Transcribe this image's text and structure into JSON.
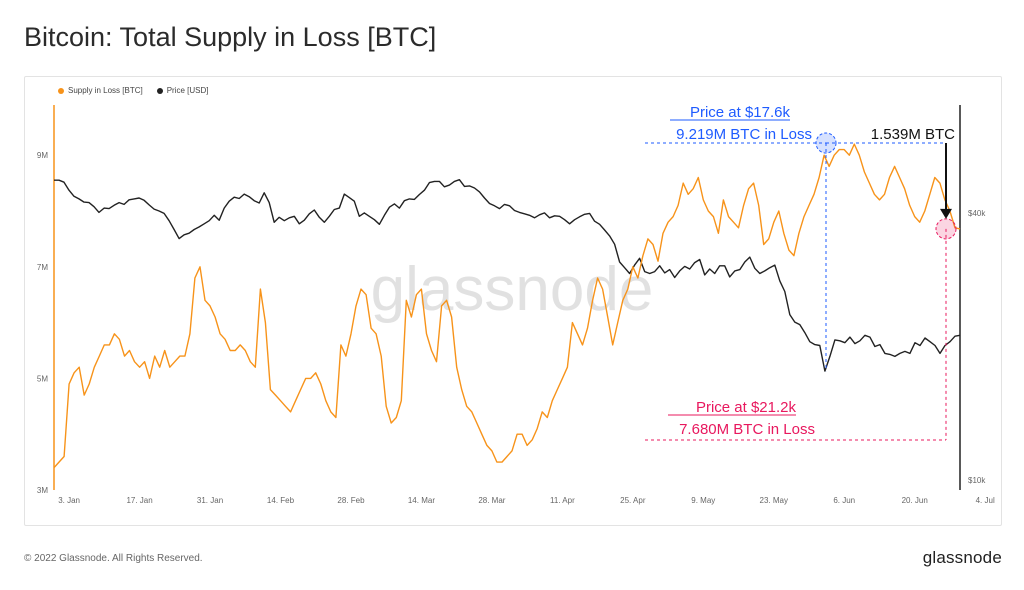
{
  "title": "Bitcoin: Total Supply in Loss [BTC]",
  "footer": "© 2022 Glassnode. All Rights Reserved.",
  "brand": "glassnode",
  "watermark": "glassnode",
  "colors": {
    "supply": "#f7931a",
    "price": "#222222",
    "blue": "#1e5bff",
    "pink": "#e8185e"
  },
  "annotations": {
    "blue_line1": "Price at $17.6k",
    "blue_line2": "9.219M BTC in Loss",
    "pink_line1": "Price at $21.2k",
    "pink_line2": "7.680M BTC in Loss",
    "delta": "1.539M BTC"
  },
  "chart_data": {
    "type": "line",
    "title": "Bitcoin: Total Supply in Loss [BTC]",
    "legend": [
      "Supply in Loss [BTC]",
      "Price [USD]"
    ],
    "legend_position": "top-left",
    "x_ticks": [
      "3. Jan",
      "17. Jan",
      "31. Jan",
      "14. Feb",
      "28. Feb",
      "14. Mar",
      "28. Mar",
      "11. Apr",
      "25. Apr",
      "9. May",
      "23. May",
      "6. Jun",
      "20. Jun",
      "4. Jul"
    ],
    "left_axis": {
      "ticks": [
        "3M",
        "5M",
        "7M",
        "9M"
      ],
      "range": [
        3.0,
        9.9
      ]
    },
    "right_axis": {
      "ticks": [
        "$10k",
        "$40k"
      ],
      "scale": "log",
      "range": [
        9.5,
        70
      ]
    },
    "series": [
      {
        "name": "Supply in Loss [BTC]",
        "unit": "M BTC",
        "values": [
          3.4,
          3.5,
          3.6,
          4.9,
          5.1,
          5.2,
          4.7,
          4.9,
          5.2,
          5.4,
          5.6,
          5.6,
          5.8,
          5.7,
          5.4,
          5.5,
          5.3,
          5.2,
          5.3,
          5.0,
          5.4,
          5.2,
          5.5,
          5.2,
          5.3,
          5.4,
          5.4,
          5.8,
          6.8,
          7.0,
          6.4,
          6.3,
          6.1,
          5.8,
          5.7,
          5.5,
          5.5,
          5.6,
          5.5,
          5.3,
          5.2,
          6.6,
          6.0,
          4.8,
          4.7,
          4.6,
          4.5,
          4.4,
          4.6,
          4.8,
          5.0,
          5.0,
          5.1,
          4.9,
          4.6,
          4.4,
          4.3,
          5.6,
          5.4,
          5.8,
          6.3,
          6.6,
          6.5,
          5.9,
          5.8,
          5.4,
          4.5,
          4.2,
          4.3,
          4.6,
          6.4,
          6.1,
          6.5,
          6.6,
          5.8,
          5.5,
          5.3,
          6.3,
          6.4,
          6.1,
          5.2,
          4.8,
          4.5,
          4.4,
          4.2,
          4.0,
          3.8,
          3.7,
          3.5,
          3.5,
          3.6,
          3.7,
          4.0,
          4.0,
          3.8,
          3.9,
          4.1,
          4.4,
          4.3,
          4.6,
          4.8,
          5.0,
          5.2,
          6.0,
          5.8,
          5.6,
          5.9,
          6.4,
          6.8,
          6.6,
          6.1,
          5.6,
          6.0,
          6.4,
          6.6,
          7.0,
          6.8,
          7.2,
          7.5,
          7.4,
          7.1,
          7.6,
          7.8,
          7.9,
          8.1,
          8.5,
          8.3,
          8.4,
          8.6,
          8.2,
          8.0,
          7.9,
          7.6,
          8.2,
          7.9,
          7.8,
          7.7,
          8.1,
          8.4,
          8.5,
          8.1,
          7.4,
          7.5,
          7.8,
          8.0,
          7.6,
          7.3,
          7.2,
          7.6,
          7.9,
          8.1,
          8.3,
          8.6,
          9.0,
          8.8,
          9.0,
          9.1,
          9.1,
          9.0,
          9.2,
          9.0,
          8.7,
          8.5,
          8.3,
          8.2,
          8.3,
          8.6,
          8.8,
          8.6,
          8.4,
          8.1,
          7.9,
          7.8,
          8.0,
          8.3,
          8.6,
          8.5,
          8.2,
          8.0,
          7.7,
          7.68
        ]
      },
      {
        "name": "Price [USD]",
        "unit": "USD (thousands)",
        "values": [
          47.4,
          47.4,
          46.9,
          45.0,
          43.6,
          43.0,
          42.3,
          42.2,
          41.3,
          40.1,
          41.0,
          40.9,
          41.6,
          42.2,
          41.8,
          42.8,
          43.0,
          43.2,
          42.7,
          41.7,
          40.8,
          40.4,
          39.9,
          38.4,
          36.7,
          35.0,
          35.7,
          36.0,
          36.7,
          37.2,
          37.8,
          38.4,
          39.5,
          38.5,
          41.0,
          42.5,
          43.4,
          43.1,
          44.1,
          43.5,
          42.6,
          42.1,
          44.4,
          42.2,
          38.1,
          39.1,
          38.4,
          39.0,
          39.3,
          37.8,
          38.5,
          39.8,
          40.6,
          39.1,
          38.1,
          39.3,
          40.7,
          41.0,
          44.1,
          43.3,
          42.5,
          39.3,
          40.0,
          39.3,
          38.6,
          37.7,
          39.5,
          41.2,
          41.9,
          41.0,
          42.6,
          43.0,
          42.9,
          44.0,
          45.0,
          46.8,
          47.1,
          47.1,
          45.8,
          46.2,
          47.1,
          47.5,
          45.9,
          46.0,
          45.5,
          44.6,
          43.2,
          42.0,
          41.5,
          40.9,
          41.8,
          41.5,
          40.5,
          40.1,
          39.8,
          39.5,
          39.0,
          39.6,
          40.0,
          39.0,
          39.4,
          39.3,
          38.6,
          37.8,
          38.6,
          39.2,
          39.7,
          39.9,
          38.3,
          37.7,
          36.6,
          35.5,
          34.0,
          31.0,
          30.1,
          29.2,
          30.5,
          31.6,
          29.5,
          29.2,
          29.5,
          30.4,
          29.3,
          29.8,
          28.6,
          29.6,
          30.3,
          29.9,
          30.9,
          31.4,
          29.0,
          29.9,
          29.2,
          30.4,
          30.4,
          28.7,
          29.6,
          29.8,
          31.0,
          31.8,
          30.0,
          29.2,
          29.6,
          30.1,
          30.5,
          28.1,
          26.6,
          23.6,
          22.7,
          22.4,
          21.5,
          20.5,
          20.2,
          20.1,
          17.6,
          19.0,
          20.7,
          20.6,
          20.4,
          21.0,
          20.3,
          20.6,
          21.2,
          21.0,
          20.0,
          20.2,
          19.3,
          19.2,
          19.0,
          19.3,
          19.5,
          19.3,
          20.4,
          20.1,
          20.9,
          20.5,
          20.1,
          19.3,
          20.1,
          20.5,
          21.1,
          21.2
        ]
      }
    ],
    "highlights": [
      {
        "label": "Price at $17.6k",
        "supply_in_loss_m": 9.219,
        "price_k": 17.6
      },
      {
        "label": "Price at $21.2k",
        "supply_in_loss_m": 7.68,
        "price_k": 21.2
      }
    ]
  }
}
